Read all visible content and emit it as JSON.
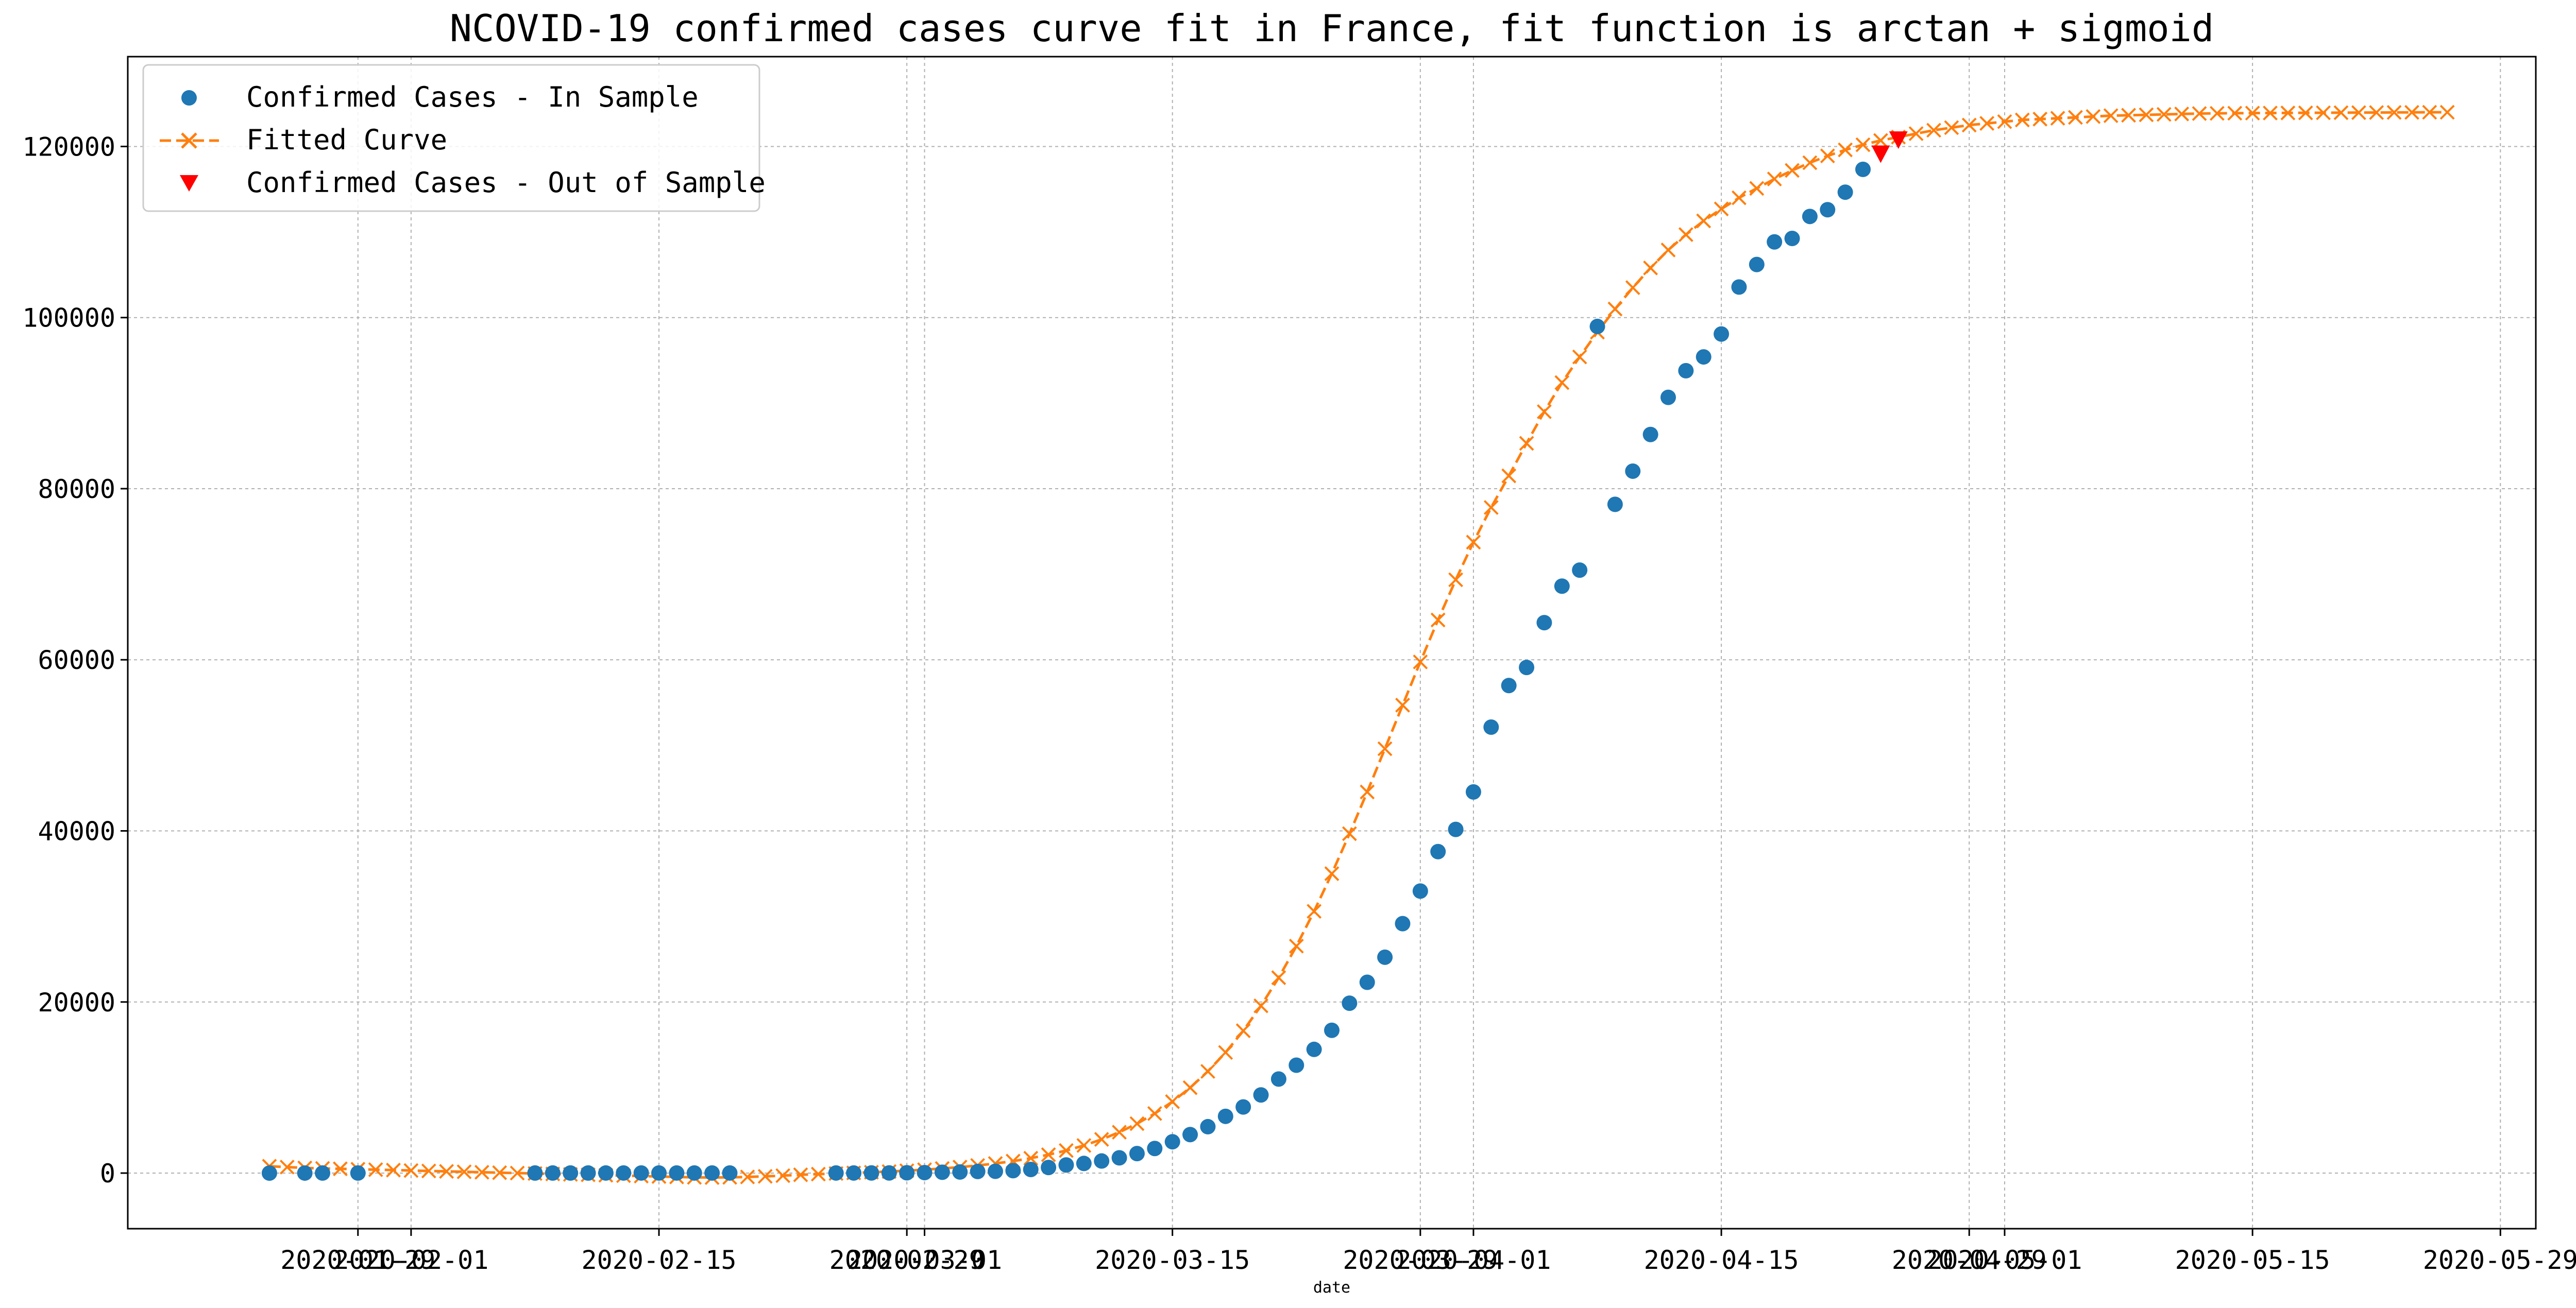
{
  "chart_data": {
    "type": "line",
    "title": "NCOVID-19 confirmed cases curve fit in France, fit function is arctan + sigmoid",
    "xlabel": "date",
    "ylabel": "",
    "grid": true,
    "legend_position": "top-left",
    "xlim": [
      "2020-01-16",
      "2020-05-31"
    ],
    "ylim": [
      -6500,
      130500
    ],
    "x_ticks": [
      "2020-01-29",
      "2020-02-01",
      "2020-02-15",
      "2020-02-29",
      "2020-03-01",
      "2020-03-15",
      "2020-03-29",
      "2020-04-01",
      "2020-04-15",
      "2020-04-29",
      "2020-05-01",
      "2020-05-15",
      "2020-05-29"
    ],
    "y_ticks": [
      "0",
      "20000",
      "40000",
      "60000",
      "80000",
      "100000",
      "120000"
    ],
    "y_tick_values": [
      0,
      20000,
      40000,
      60000,
      80000,
      100000,
      120000
    ],
    "colors": {
      "in_sample": "#1f77b4",
      "fitted": "#ff7f0e",
      "out_sample": "#ff0000",
      "grid": "#b0b0b0",
      "axes": "#000000"
    },
    "series": [
      {
        "name": "Confirmed Cases - In Sample",
        "marker": "circle",
        "start_date": "2020-01-24",
        "values": [
          3,
          null,
          4,
          5,
          null,
          6,
          null,
          null,
          null,
          null,
          null,
          null,
          null,
          null,
          null,
          11,
          11,
          11,
          11,
          12,
          12,
          12,
          12,
          12,
          12,
          12,
          12,
          null,
          null,
          null,
          null,
          null,
          12,
          12,
          14,
          18,
          38,
          57,
          100,
          130,
          191,
          212,
          285,
          423,
          653,
          949,
          1126,
          1412,
          1784,
          2281,
          2876,
          3661,
          4499,
          5423,
          6633,
          7730,
          9134,
          10995,
          12612,
          14459,
          16689,
          19856,
          22304,
          25233,
          29155,
          32964,
          37575,
          40174,
          44550,
          52128,
          56989,
          59105,
          64338,
          68605,
          70478,
          98963,
          78167,
          82048,
          86334,
          90676,
          93790,
          95403,
          98076,
          103573,
          106206,
          108847,
          109252,
          111821,
          112606,
          114657,
          117324
        ]
      },
      {
        "name": "Fitted Curve",
        "marker": "x",
        "line": "dashed",
        "start_date": "2020-01-24",
        "values": [
          800,
          700,
          600,
          550,
          500,
          450,
          400,
          350,
          300,
          250,
          200,
          150,
          100,
          50,
          0,
          -50,
          -100,
          -150,
          -200,
          -250,
          -300,
          -350,
          -400,
          -450,
          -500,
          -520,
          -500,
          -450,
          -380,
          -300,
          -200,
          -120,
          -50,
          20,
          100,
          180,
          280,
          400,
          540,
          700,
          890,
          1120,
          1400,
          1740,
          2150,
          2640,
          3230,
          3940,
          4780,
          5780,
          6960,
          8350,
          9980,
          11890,
          14100,
          16640,
          19550,
          22840,
          26530,
          30600,
          35000,
          39670,
          44550,
          49600,
          54700,
          59750,
          64650,
          69350,
          73750,
          77800,
          81500,
          85300,
          89000,
          92400,
          95400,
          98300,
          101000,
          103500,
          105800,
          107900,
          109700,
          111300,
          112700,
          114000,
          115100,
          116200,
          117200,
          118100,
          118900,
          119600,
          120200,
          120700,
          121100,
          121500,
          121900,
          122200,
          122500,
          122700,
          122900,
          123100,
          123200,
          123300,
          123400,
          123500,
          123600,
          123650,
          123700,
          123750,
          123800,
          123850,
          123870,
          123890,
          123900,
          123910,
          123920,
          123930,
          123940,
          123950,
          123960,
          123970,
          123980,
          123990,
          124000,
          124000
        ]
      },
      {
        "name": "Confirmed Cases - Out of Sample",
        "marker": "triangle-down",
        "x": [
          "2020-04-24",
          "2020-04-25"
        ],
        "values": [
          119151,
          120804
        ]
      }
    ]
  }
}
